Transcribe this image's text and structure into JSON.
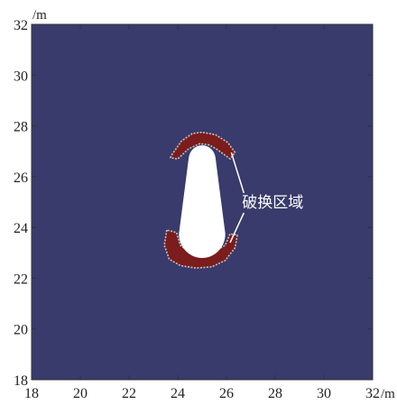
{
  "chart_data": {
    "type": "heatmap",
    "xlim": [
      18,
      32
    ],
    "ylim": [
      18,
      32
    ],
    "x_ticks": [
      18,
      20,
      22,
      24,
      26,
      28,
      30,
      32
    ],
    "y_ticks": [
      18,
      20,
      22,
      24,
      26,
      28,
      30,
      32
    ],
    "x_unit": "/m",
    "y_unit": "/m",
    "grid": false,
    "colors": {
      "background": "#383b6b",
      "damage_zone": "#7a1d1c",
      "damage_edge": "#c9bfbd",
      "cavity": "#ffffff",
      "annotation": "#ffffff"
    },
    "cavity": {
      "top_center": [
        25.0,
        26.75
      ],
      "top_radius": 0.55,
      "bottom_center": [
        25.0,
        23.75
      ],
      "bottom_radius": 0.95
    },
    "damage_zones": [
      {
        "name": "upper",
        "outer_polygon": [
          [
            23.75,
            26.85
          ],
          [
            24.15,
            27.4
          ],
          [
            24.6,
            27.7
          ],
          [
            25.0,
            27.75
          ],
          [
            25.55,
            27.65
          ],
          [
            26.05,
            27.35
          ],
          [
            26.35,
            26.95
          ],
          [
            26.15,
            26.7
          ],
          [
            25.65,
            27.05
          ],
          [
            25.3,
            27.25
          ],
          [
            24.9,
            27.3
          ],
          [
            24.45,
            27.1
          ],
          [
            24.0,
            26.7
          ],
          [
            23.7,
            26.75
          ]
        ],
        "inner_arc_center": [
          25.0,
          26.75
        ],
        "inner_arc_radius": 0.55
      },
      {
        "name": "lower",
        "outer_polygon": [
          [
            23.55,
            23.9
          ],
          [
            23.45,
            23.3
          ],
          [
            23.65,
            22.75
          ],
          [
            24.1,
            22.5
          ],
          [
            24.75,
            22.4
          ],
          [
            25.4,
            22.45
          ],
          [
            25.95,
            22.7
          ],
          [
            26.35,
            23.2
          ],
          [
            26.45,
            23.7
          ],
          [
            26.15,
            23.75
          ],
          [
            25.95,
            23.3
          ],
          [
            25.5,
            23.05
          ],
          [
            25.0,
            22.95
          ],
          [
            24.45,
            23.05
          ],
          [
            24.1,
            23.3
          ],
          [
            23.95,
            23.8
          ]
        ],
        "inner_arc_center": [
          25.0,
          23.75
        ],
        "inner_arc_radius": 0.95
      }
    ],
    "annotation": {
      "text": "破换区域",
      "anchor": [
        27.9,
        25.0
      ],
      "pointers": [
        [
          26.2,
          26.95
        ],
        [
          26.15,
          23.4
        ]
      ]
    }
  }
}
